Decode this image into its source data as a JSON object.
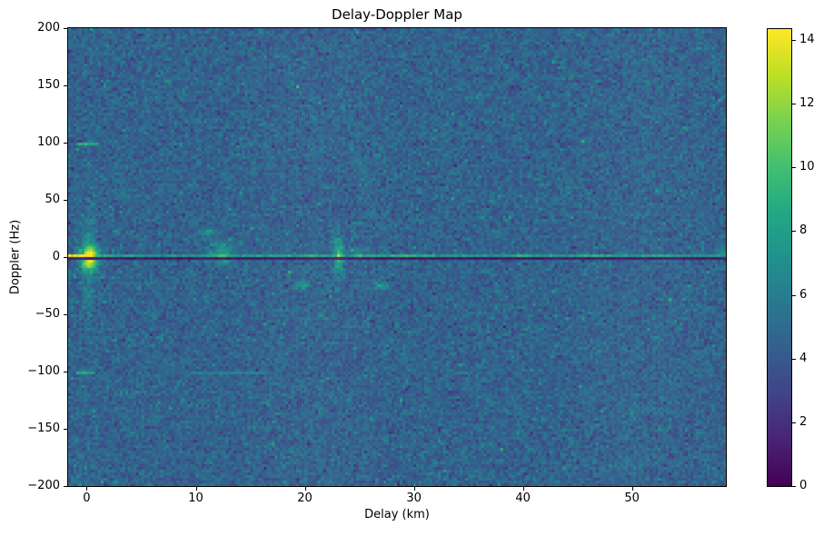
{
  "figure": {
    "background": "#ffffff"
  },
  "chart_data": {
    "type": "heatmap",
    "title": "Delay-Doppler Map",
    "xlabel": "Delay (km)",
    "ylabel": "Doppler (Hz)",
    "x_ticks": [
      0,
      10,
      20,
      30,
      40,
      50
    ],
    "y_ticks": [
      200,
      150,
      100,
      50,
      0,
      -50,
      -100,
      -150,
      -200
    ],
    "colorbar_ticks": [
      0,
      2,
      4,
      6,
      8,
      10,
      12,
      14
    ],
    "x_range": [
      -1.7,
      58.6
    ],
    "y_range": [
      -200,
      200
    ],
    "vmin": 0,
    "vmax": 14.34,
    "colormap": "viridis",
    "legend": "none",
    "grid_lines": "off",
    "viridis_stops": [
      [
        0.0,
        "#440154"
      ],
      [
        0.1,
        "#482475"
      ],
      [
        0.2,
        "#414487"
      ],
      [
        0.3,
        "#355f8d"
      ],
      [
        0.4,
        "#2a788e"
      ],
      [
        0.5,
        "#21918c"
      ],
      [
        0.6,
        "#22a884"
      ],
      [
        0.7,
        "#44bf70"
      ],
      [
        0.8,
        "#7ad151"
      ],
      [
        0.9,
        "#bddf26"
      ],
      [
        1.0,
        "#fde725"
      ]
    ],
    "noise_field": {
      "cols": 242,
      "rows": 168,
      "seed": 42,
      "mean": 4.55,
      "std": 0.85,
      "hot_prob": 0.006,
      "hot_amp": 1.6
    },
    "zero_doppler_ridge": {
      "doppler": 2,
      "base": 7.6,
      "peak_amp": 6.8,
      "peak_scale": 1.1,
      "col_jitter": 0.75,
      "jitter_seed": 7,
      "bumps": [
        {
          "delay": 12.3,
          "amp": 2.6,
          "width": 0.5
        },
        {
          "delay": 21.0,
          "amp": 1.2,
          "width": 0.8
        },
        {
          "delay": 23.1,
          "amp": 3.6,
          "width": 0.35
        },
        {
          "delay": 25.0,
          "amp": 1.8,
          "width": 0.5
        },
        {
          "delay": 29.5,
          "amp": 1.6,
          "width": 1.6
        },
        {
          "delay": 39.5,
          "amp": 1.0,
          "width": 1.0
        },
        {
          "delay": 46.5,
          "amp": 1.4,
          "width": 1.2
        },
        {
          "delay": 52.5,
          "amp": 1.0,
          "width": 1.0
        }
      ]
    },
    "zero_doppler_notch": {
      "doppler": -1,
      "value": 0.7,
      "jitter": 0.8
    },
    "blobs": [
      {
        "delay": 0.25,
        "doppler": 0,
        "sx": 0.55,
        "sy": 6.5,
        "amp": 9.5
      },
      {
        "delay": 0.25,
        "doppler": 0,
        "sx": 0.45,
        "sy": 30,
        "amp": 2.0
      },
      {
        "delay": 12.3,
        "doppler": 5,
        "sx": 0.8,
        "sy": 6,
        "amp": 3.0
      },
      {
        "delay": 11.2,
        "doppler": 22,
        "sx": 0.45,
        "sy": 2.5,
        "amp": 3.2
      },
      {
        "delay": 12.6,
        "doppler": -5,
        "sx": 0.4,
        "sy": 2.0,
        "amp": 2.5
      },
      {
        "delay": 23.1,
        "doppler": 0,
        "sx": 0.32,
        "sy": 11,
        "amp": 5.0
      },
      {
        "delay": 25.0,
        "doppler": 5,
        "sx": 0.5,
        "sy": 2.2,
        "amp": 2.6
      },
      {
        "delay": 19.9,
        "doppler": -24,
        "sx": 0.45,
        "sy": 2.5,
        "amp": 3.2
      },
      {
        "delay": 26.9,
        "doppler": -26,
        "sx": 0.5,
        "sy": 2.5,
        "amp": 2.8
      },
      {
        "delay": 58.2,
        "doppler": 4,
        "sx": 0.5,
        "sy": 2.5,
        "amp": 3.0
      }
    ],
    "doppler_dashes": [
      {
        "delay0": -1.0,
        "delay1": 1.0,
        "doppler": 100,
        "value": 9.0,
        "jitter": 2.0
      },
      {
        "delay0": -1.0,
        "delay1": 0.8,
        "doppler": -100,
        "value": 8.2,
        "jitter": 2.0
      },
      {
        "delay0": 9.5,
        "delay1": 16.5,
        "doppler": -100,
        "value": 6.3,
        "jitter": 1.0
      }
    ]
  }
}
